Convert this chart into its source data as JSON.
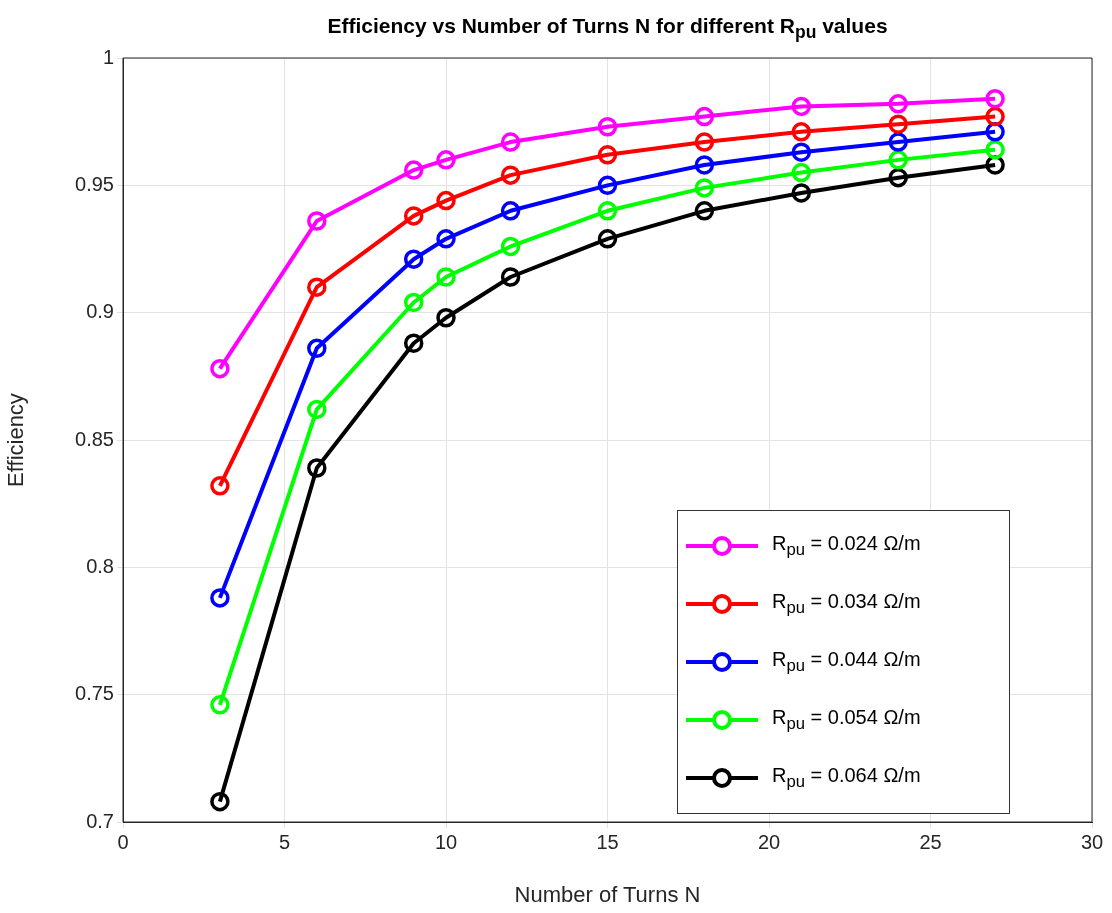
{
  "chart_data": {
    "type": "line",
    "title": "Efficiency vs Number of Turns N for different R$_{pu}$ values",
    "xlabel": "Number of Turns N",
    "ylabel": "Efficiency",
    "x": [
      3,
      6,
      9,
      10,
      12,
      15,
      18,
      21,
      24,
      27
    ],
    "series": [
      {
        "name": "R$_{pu}$ = 0.024 Ω/m",
        "color": "#ff00ff",
        "values": [
          0.878,
          0.936,
          0.956,
          0.96,
          0.967,
          0.973,
          0.977,
          0.981,
          0.982,
          0.984
        ]
      },
      {
        "name": "R$_{pu}$ = 0.034 Ω/m",
        "color": "#ff0000",
        "values": [
          0.832,
          0.91,
          0.938,
          0.944,
          0.954,
          0.962,
          0.967,
          0.971,
          0.974,
          0.977
        ]
      },
      {
        "name": "R$_{pu}$ = 0.044 Ω/m",
        "color": "#0000ff",
        "values": [
          0.788,
          0.886,
          0.921,
          0.929,
          0.94,
          0.95,
          0.958,
          0.963,
          0.967,
          0.971
        ]
      },
      {
        "name": "R$_{pu}$ = 0.054 Ω/m",
        "color": "#00ff00",
        "values": [
          0.746,
          0.862,
          0.904,
          0.914,
          0.926,
          0.94,
          0.949,
          0.955,
          0.96,
          0.964
        ]
      },
      {
        "name": "R$_{pu}$ = 0.064 Ω/m",
        "color": "#000000",
        "values": [
          0.708,
          0.839,
          0.888,
          0.898,
          0.914,
          0.929,
          0.94,
          0.947,
          0.953,
          0.958
        ]
      }
    ],
    "xlim": [
      0,
      30
    ],
    "xticks": [
      0,
      5,
      10,
      15,
      20,
      25,
      30
    ],
    "ylim": [
      0.7,
      1
    ],
    "yticks": [
      0.7,
      0.75,
      0.8,
      0.85,
      0.9,
      0.95,
      1
    ],
    "grid": true,
    "legend": "bottom right",
    "marker": "circle",
    "line_style": "solid"
  }
}
